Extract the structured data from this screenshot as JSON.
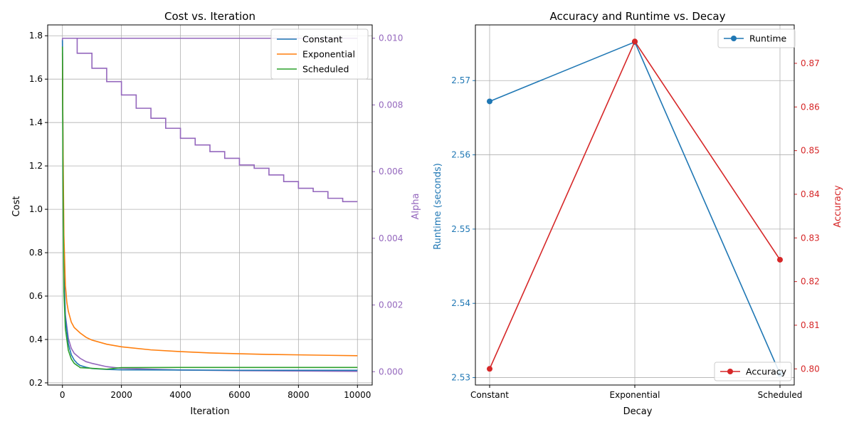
{
  "chart_data": [
    {
      "type": "line",
      "title": "Cost vs. Iteration",
      "xlabel": "Iteration",
      "ylabel": "Cost",
      "y2label": "Alpha",
      "xlim": [
        -500,
        10500
      ],
      "ylim": [
        0.19,
        1.85
      ],
      "y2lim": [
        -0.0004,
        0.0104
      ],
      "x_ticks": [
        0,
        2000,
        4000,
        6000,
        8000,
        10000
      ],
      "y_ticks": [
        0.2,
        0.4,
        0.6,
        0.8,
        1.0,
        1.2,
        1.4,
        1.6,
        1.8
      ],
      "y2_ticks": [
        0.0,
        0.002,
        0.004,
        0.006,
        0.008,
        0.01
      ],
      "grid": true,
      "legend_position": "top-right",
      "series": [
        {
          "name": "Constant",
          "color": "#1f77b4",
          "axis": "left",
          "points": [
            [
              0,
              1.78
            ],
            [
              20,
              1.2
            ],
            [
              50,
              0.7
            ],
            [
              100,
              0.5
            ],
            [
              200,
              0.38
            ],
            [
              300,
              0.33
            ],
            [
              400,
              0.305
            ],
            [
              500,
              0.29
            ],
            [
              600,
              0.28
            ],
            [
              800,
              0.272
            ],
            [
              1000,
              0.266
            ],
            [
              1500,
              0.262
            ],
            [
              2000,
              0.26
            ],
            [
              4000,
              0.259
            ],
            [
              6000,
              0.258
            ],
            [
              8000,
              0.258
            ],
            [
              10000,
              0.258
            ]
          ]
        },
        {
          "name": "Exponential",
          "color": "#ff7f0e",
          "axis": "left",
          "points": [
            [
              0,
              1.72
            ],
            [
              20,
              1.3
            ],
            [
              50,
              0.88
            ],
            [
              100,
              0.65
            ],
            [
              150,
              0.57
            ],
            [
              200,
              0.53
            ],
            [
              300,
              0.48
            ],
            [
              400,
              0.455
            ],
            [
              600,
              0.43
            ],
            [
              800,
              0.41
            ],
            [
              1000,
              0.397
            ],
            [
              1500,
              0.378
            ],
            [
              2000,
              0.366
            ],
            [
              3000,
              0.352
            ],
            [
              4000,
              0.344
            ],
            [
              5000,
              0.338
            ],
            [
              6000,
              0.334
            ],
            [
              7000,
              0.331
            ],
            [
              8000,
              0.329
            ],
            [
              9000,
              0.327
            ],
            [
              10000,
              0.325
            ]
          ]
        },
        {
          "name": "Scheduled",
          "color": "#2ca02c",
          "axis": "left",
          "points": [
            [
              0,
              1.75
            ],
            [
              20,
              1.1
            ],
            [
              50,
              0.62
            ],
            [
              100,
              0.45
            ],
            [
              200,
              0.35
            ],
            [
              300,
              0.31
            ],
            [
              400,
              0.29
            ],
            [
              500,
              0.28
            ],
            [
              560,
              0.275
            ],
            [
              600,
              0.27
            ],
            [
              1000,
              0.267
            ],
            [
              1500,
              0.263
            ],
            [
              2000,
              0.27
            ],
            [
              4000,
              0.271
            ],
            [
              6000,
              0.271
            ],
            [
              8000,
              0.271
            ],
            [
              10000,
              0.271
            ]
          ]
        },
        {
          "name": "",
          "color": "#9467bd",
          "axis": "right",
          "points": [
            [
              0,
              0.01
            ],
            [
              20,
              0.006
            ],
            [
              50,
              0.003
            ],
            [
              100,
              0.0017
            ],
            [
              200,
              0.001
            ],
            [
              300,
              0.0007
            ],
            [
              400,
              0.00055
            ],
            [
              600,
              0.0004
            ],
            [
              800,
              0.0003
            ],
            [
              1000,
              0.00025
            ],
            [
              1500,
              0.00015
            ],
            [
              2000,
              0.0001
            ],
            [
              4000,
              5e-05
            ],
            [
              6000,
              3e-05
            ],
            [
              8000,
              2e-05
            ],
            [
              10000,
              1e-05
            ]
          ]
        },
        {
          "name": "",
          "color": "#9467bd",
          "axis": "right",
          "step": true,
          "points": [
            [
              0,
              0.01
            ],
            [
              500,
              0.01
            ],
            [
              500,
              0.00955
            ],
            [
              1000,
              0.00955
            ],
            [
              1000,
              0.0091
            ],
            [
              1500,
              0.0091
            ],
            [
              1500,
              0.0087
            ],
            [
              2000,
              0.0087
            ],
            [
              2000,
              0.0083
            ],
            [
              2500,
              0.0083
            ],
            [
              2500,
              0.0079
            ],
            [
              3000,
              0.0079
            ],
            [
              3000,
              0.0076
            ],
            [
              3500,
              0.0076
            ],
            [
              3500,
              0.0073
            ],
            [
              4000,
              0.0073
            ],
            [
              4000,
              0.007
            ],
            [
              4500,
              0.007
            ],
            [
              4500,
              0.0068
            ],
            [
              5000,
              0.0068
            ],
            [
              5000,
              0.0066
            ],
            [
              5500,
              0.0066
            ],
            [
              5500,
              0.0064
            ],
            [
              6000,
              0.0064
            ],
            [
              6000,
              0.0062
            ],
            [
              6500,
              0.0062
            ],
            [
              6500,
              0.0061
            ],
            [
              7000,
              0.0061
            ],
            [
              7000,
              0.0059
            ],
            [
              7500,
              0.0059
            ],
            [
              7500,
              0.0057
            ],
            [
              8000,
              0.0057
            ],
            [
              8000,
              0.0055
            ],
            [
              8500,
              0.0055
            ],
            [
              8500,
              0.0054
            ],
            [
              9000,
              0.0054
            ],
            [
              9000,
              0.0052
            ],
            [
              9500,
              0.0052
            ],
            [
              9500,
              0.0051
            ],
            [
              10000,
              0.0051
            ]
          ]
        },
        {
          "name": "",
          "color": "#9467bd",
          "axis": "right",
          "points": [
            [
              0,
              0.01
            ],
            [
              10000,
              0.01
            ]
          ]
        }
      ]
    },
    {
      "type": "line",
      "title": "Accuracy and Runtime vs. Decay",
      "xlabel": "Decay",
      "ylabel": "Runtime (seconds)",
      "y2label": "Accuracy",
      "categories": [
        "Constant",
        "Exponential",
        "Scheduled"
      ],
      "ylim": [
        2.529,
        2.5775
      ],
      "y2lim": [
        0.7963,
        0.8788
      ],
      "y_ticks": [
        2.53,
        2.54,
        2.55,
        2.56,
        2.57
      ],
      "y2_ticks": [
        0.8,
        0.81,
        0.82,
        0.83,
        0.84,
        0.85,
        0.86,
        0.87
      ],
      "grid": true,
      "series": [
        {
          "name": "Runtime",
          "color": "#1f77b4",
          "axis": "left",
          "values": [
            2.5672,
            2.5752,
            2.5305
          ],
          "legend_position": "top-right"
        },
        {
          "name": "Accuracy",
          "color": "#d62728",
          "axis": "right",
          "values": [
            0.8,
            0.875,
            0.825
          ],
          "legend_position": "bottom-right"
        }
      ]
    }
  ]
}
